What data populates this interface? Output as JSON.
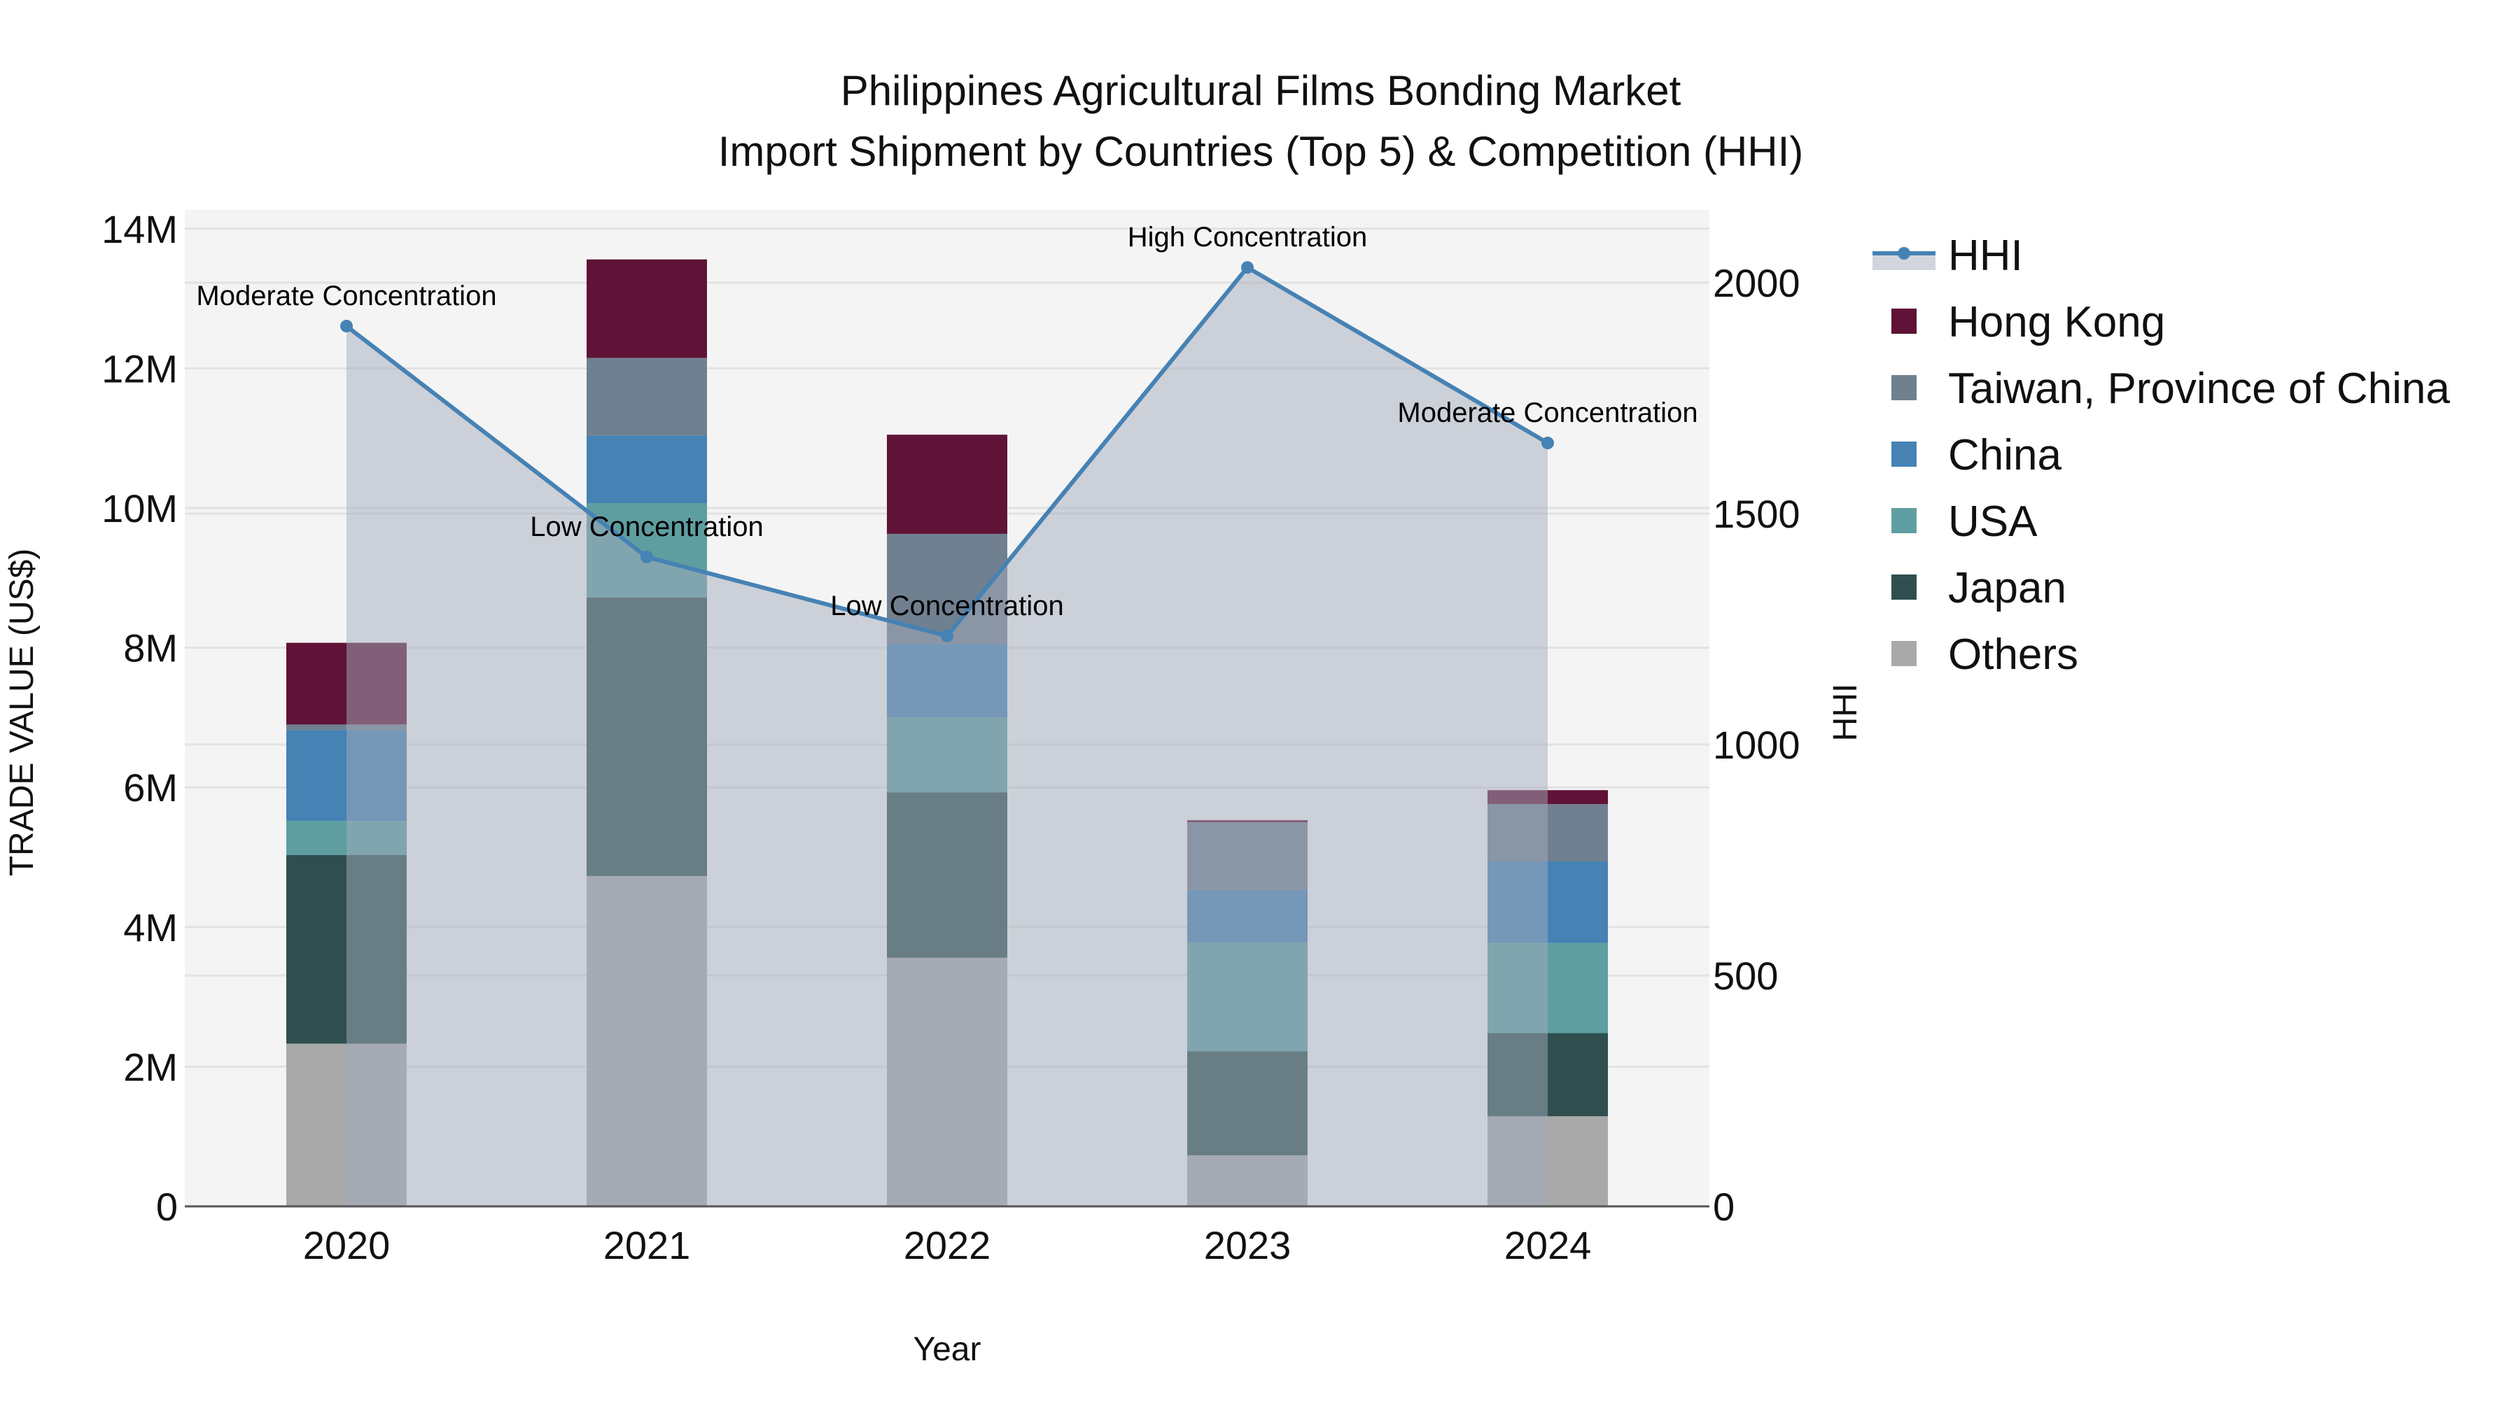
{
  "chart_data": {
    "type": "bar",
    "subtype": "stacked bar + area/line (dual axis)",
    "title": "Philippines Agricultural Films Bonding Market",
    "subtitle": "Import Shipment by Countries (Top 5) & Competition (HHI)",
    "xlabel": "Year",
    "ylabel": "TRADE VALUE (US$)",
    "y2label": "HHI",
    "categories": [
      "2020",
      "2021",
      "2022",
      "2023",
      "2024"
    ],
    "ylim": [
      0,
      14300000
    ],
    "y_ticks": [
      0,
      2000000,
      4000000,
      6000000,
      8000000,
      10000000,
      12000000,
      14000000
    ],
    "y_tick_labels": [
      "0",
      "2M",
      "4M",
      "6M",
      "8M",
      "10M",
      "12M",
      "14M"
    ],
    "y2lim": [
      0,
      2170
    ],
    "y2_ticks": [
      0,
      500,
      1000,
      1500,
      2000
    ],
    "y2_tick_labels": [
      "0",
      "500",
      "1000",
      "1500",
      "2000"
    ],
    "grid": true,
    "legend_position": "right",
    "series": [
      {
        "name": "Others",
        "color": "#a9a9a9",
        "values": [
          2330000,
          4730000,
          3560000,
          730000,
          1290000
        ]
      },
      {
        "name": "Japan",
        "color": "#2f4f4f",
        "values": [
          2700000,
          3990000,
          2370000,
          1490000,
          1190000
        ]
      },
      {
        "name": "USA",
        "color": "#5f9ea0",
        "values": [
          490000,
          1350000,
          1070000,
          1560000,
          1290000
        ]
      },
      {
        "name": "China",
        "color": "#4682b4",
        "values": [
          1300000,
          970000,
          1050000,
          750000,
          1170000
        ]
      },
      {
        "name": "Taiwan, Province of China",
        "color": "#708090",
        "values": [
          80000,
          1110000,
          1580000,
          970000,
          820000
        ]
      },
      {
        "name": "Hong Kong",
        "color": "#601336",
        "values": [
          1170000,
          1410000,
          1420000,
          30000,
          200000
        ]
      }
    ],
    "hhi": {
      "name": "HHI",
      "line_color": "#4682b4",
      "fill_color": "#a3acbc",
      "values": [
        1906,
        1406,
        1235,
        2033,
        1653
      ],
      "annotations": [
        "Moderate Concentration",
        "Low Concentration",
        "Low Concentration",
        "High Concentration",
        "Moderate Concentration"
      ]
    }
  },
  "legend": {
    "items": [
      {
        "label": "HHI",
        "kind": "line",
        "color": "#4682b4"
      },
      {
        "label": "Hong Kong",
        "kind": "box",
        "color": "#601336"
      },
      {
        "label": "Taiwan, Province of China",
        "kind": "box",
        "color": "#708090"
      },
      {
        "label": "China",
        "kind": "box",
        "color": "#4682b4"
      },
      {
        "label": "USA",
        "kind": "box",
        "color": "#5f9ea0"
      },
      {
        "label": "Japan",
        "kind": "box",
        "color": "#2f4f4f"
      },
      {
        "label": "Others",
        "kind": "box",
        "color": "#a9a9a9"
      }
    ]
  },
  "colors": {
    "plot_bg": "#f4f4f4",
    "grid": "#e2e2e2",
    "axis_line": "#555555"
  }
}
